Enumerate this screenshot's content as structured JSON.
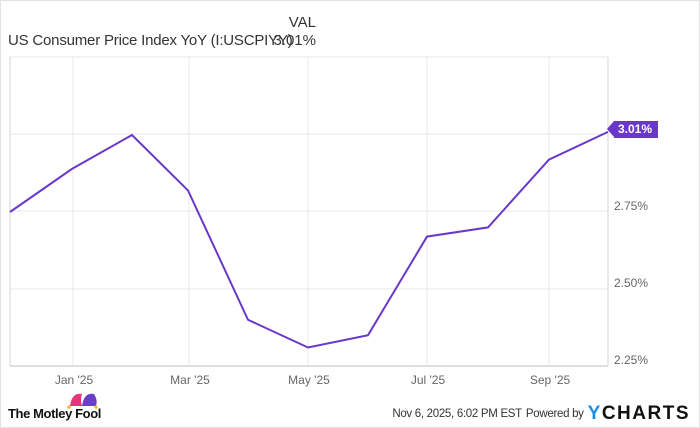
{
  "legend": {
    "header": "VAL",
    "series_name": "US Consumer Price Index YoY (I:USCPIYY)",
    "series_value": "3.01%"
  },
  "badge": {
    "label": "3.01%",
    "color": "#6a38c9"
  },
  "y_axis": {
    "ticks": [
      "2.75%",
      "2.50%",
      "2.25%"
    ]
  },
  "x_axis": {
    "ticks": [
      "Jan '25",
      "Mar '25",
      "May '25",
      "Jul '25",
      "Sep '25"
    ]
  },
  "footer": {
    "brand": "The Motley Fool",
    "timestamp": "Nov 6, 2025, 6:02 PM EST",
    "powered_by": "Powered by",
    "provider_y": "Y",
    "provider_rest": "CHARTS"
  },
  "colors": {
    "line": "#6a38c9",
    "grid": "#e8e8e8",
    "axis": "#d4d4d4"
  },
  "chart_data": {
    "type": "line",
    "title": "US Consumer Price Index YoY (I:USCPIYY)",
    "xlabel": "",
    "ylabel": "",
    "x": [
      "Dec '24",
      "Jan '25",
      "Feb '25",
      "Mar '25",
      "Apr '25",
      "May '25",
      "Jun '25",
      "Jul '25",
      "Aug '25",
      "Sep '25",
      "Oct '25"
    ],
    "series": [
      {
        "name": "US Consumer Price Index YoY (I:USCPIYY)",
        "values": [
          2.75,
          2.89,
          3.0,
          2.82,
          2.4,
          2.31,
          2.35,
          2.67,
          2.7,
          2.92,
          3.01
        ]
      }
    ],
    "ylim": [
      2.25,
      3.25
    ],
    "y_ticks": [
      2.25,
      2.5,
      2.75,
      3.0
    ],
    "x_tick_labels": [
      "Jan '25",
      "Mar '25",
      "May '25",
      "Jul '25",
      "Sep '25"
    ],
    "last_value_label": "3.01%",
    "grid": true,
    "legend_position": "top-left"
  }
}
